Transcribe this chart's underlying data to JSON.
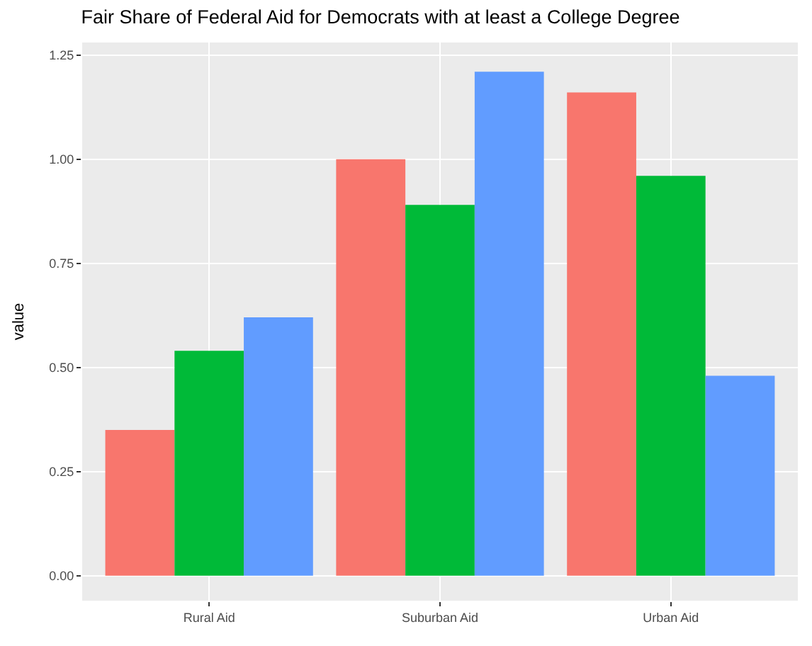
{
  "chart_data": {
    "type": "bar",
    "title": "Fair Share of Federal Aid for Democrats with at least a College Degree",
    "ylabel": "value",
    "categories": [
      "Rural Aid",
      "Suburban Aid",
      "Urban Aid"
    ],
    "series": [
      {
        "color": "#f8766d",
        "values": [
          0.35,
          1.0,
          1.16
        ]
      },
      {
        "color": "#00ba38",
        "values": [
          0.54,
          0.89,
          0.96
        ]
      },
      {
        "color": "#619cff",
        "values": [
          0.62,
          1.21,
          0.48
        ]
      }
    ],
    "ylim": [
      -0.06,
      1.28
    ],
    "yticks": [
      {
        "value": 0,
        "label": "0.00"
      },
      {
        "value": 0.25,
        "label": "0.25"
      },
      {
        "value": 0.5,
        "label": "0.50"
      },
      {
        "value": 0.75,
        "label": "0.75"
      },
      {
        "value": 1,
        "label": "1.00"
      },
      {
        "value": 1.25,
        "label": "1.25"
      }
    ],
    "grid": true
  }
}
